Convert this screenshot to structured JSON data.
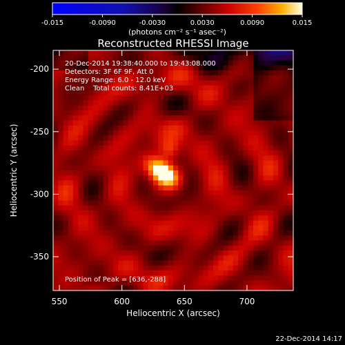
{
  "chart_data": {
    "type": "heatmap",
    "title": "Reconstructed RHESSI Image",
    "xlabel": "Heliocentric X (arcsec)",
    "ylabel": "Heliocentric Y (arcsec)",
    "xlim": [
      545,
      737
    ],
    "ylim": [
      -377,
      -185
    ],
    "xticks": [
      550,
      600,
      650,
      700
    ],
    "yticks": [
      -200,
      -250,
      -300,
      -350
    ],
    "colorbar": {
      "ticks": [
        "-0.015",
        "-0.0090",
        "-0.0030",
        "0.0030",
        "0.0090",
        "0.015"
      ],
      "range": [
        -0.015,
        0.015
      ],
      "label": "(photons cm⁻² s⁻¹ asec⁻²)"
    },
    "colors": {
      "low": "#0000ff",
      "zero": "#000000",
      "mid": "#d00000",
      "high": "#ffffe0"
    },
    "annotations": [
      "20-Dec-2014 19:38:40.000 to 19:43:08.000",
      "Detectors: 3F 6F 9F, Att 0",
      "Energy Range: 6.0 - 12.0 keV",
      "Clean    Total counts: 8.41E+03"
    ],
    "peak_label": "Position of Peak = [636,-288]",
    "peak": {
      "x": 636,
      "y": -288
    }
  },
  "footer_date": "22-Dec-2014 14:17"
}
